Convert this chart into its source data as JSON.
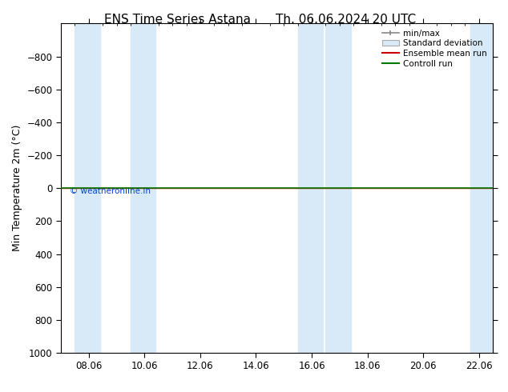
{
  "title_left": "ENS Time Series Astana",
  "title_right": "Th. 06.06.2024 20 UTC",
  "ylabel": "Min Temperature 2m (°C)",
  "ylim_bottom": 1000,
  "ylim_top": -1000,
  "yticks": [
    -800,
    -600,
    -400,
    -200,
    0,
    200,
    400,
    600,
    800,
    1000
  ],
  "background_color": "#ffffff",
  "plot_bg_color": "#ffffff",
  "shade_color": "#d8eaf7",
  "band_positions": [
    [
      0.5,
      1.4
    ],
    [
      2.5,
      3.4
    ],
    [
      8.5,
      9.4
    ],
    [
      9.5,
      10.4
    ],
    [
      14.7,
      15.5
    ]
  ],
  "line_y_value": 0.0,
  "control_run_color": "#007700",
  "ensemble_mean_color": "#cc0000",
  "copyright_text": "© weatheronline.in",
  "copyright_color": "#0044cc",
  "xtick_labels": [
    "08.06",
    "10.06",
    "12.06",
    "14.06",
    "16.06",
    "18.06",
    "20.06",
    "22.06"
  ],
  "xtick_positions": [
    1,
    3,
    5,
    7,
    9,
    11,
    13,
    15
  ],
  "xlim": [
    0,
    15.5
  ],
  "legend_labels": [
    "min/max",
    "Standard deviation",
    "Ensemble mean run",
    "Controll run"
  ],
  "title_fontsize": 11,
  "axis_fontsize": 9,
  "tick_fontsize": 8.5
}
